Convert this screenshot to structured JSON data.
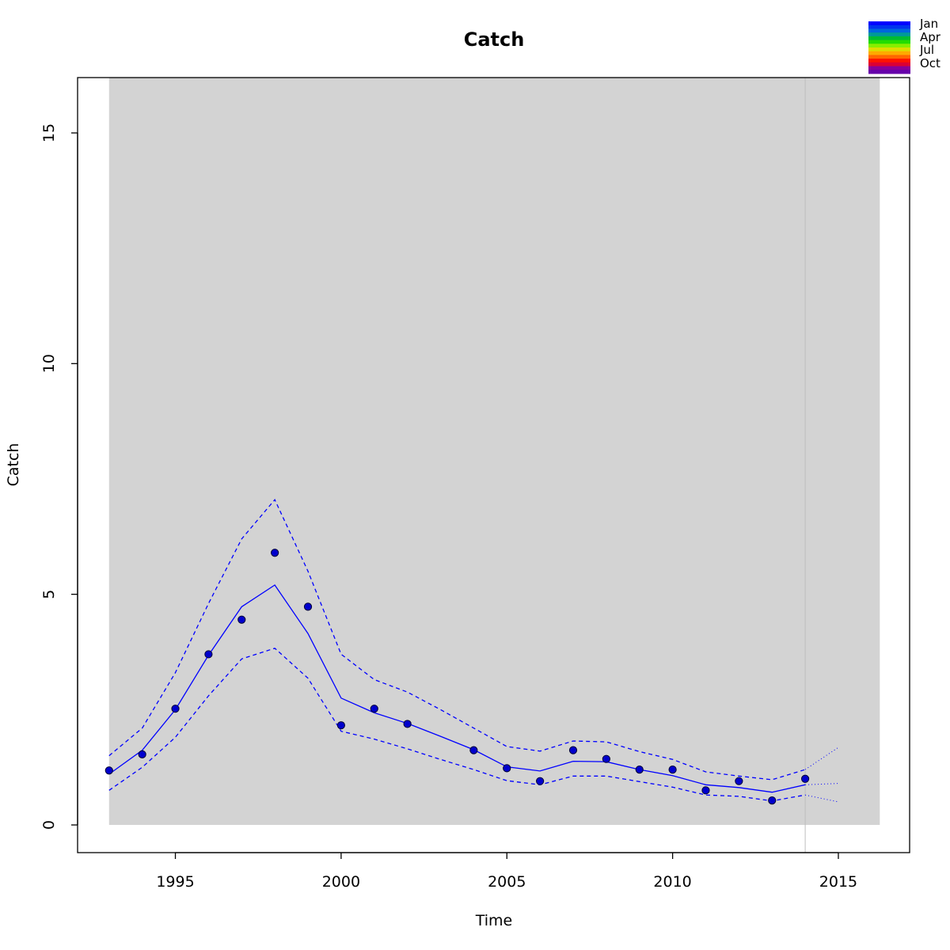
{
  "chart_data": {
    "type": "line",
    "title": "Catch",
    "xlabel": "Time",
    "ylabel": "Catch",
    "xlim": [
      1992.05,
      2017.15
    ],
    "ylim": [
      -0.6,
      16.2
    ],
    "xticks": [
      1995,
      2000,
      2005,
      2010,
      2015
    ],
    "yticks": [
      0,
      5,
      10,
      15
    ],
    "grid": false,
    "shaded_region": {
      "x_range": [
        1993,
        2016.25
      ],
      "y_range": [
        0,
        16.2
      ],
      "color": "#d3d3d3"
    },
    "vertical_line": {
      "x": 2014,
      "color": "#bebebe"
    },
    "line_color": "#0000ff",
    "point_color": "#0000cd",
    "observed": {
      "x": [
        1993,
        1994,
        1995,
        1996,
        1997,
        1998,
        1999,
        2000,
        2001,
        2002,
        2004,
        2005,
        2006,
        2007,
        2008,
        2009,
        2010,
        2011,
        2012,
        2013,
        2014
      ],
      "y": [
        1.18,
        1.53,
        2.52,
        3.7,
        4.45,
        5.9,
        4.73,
        2.16,
        2.52,
        2.19,
        1.62,
        1.23,
        0.95,
        1.62,
        1.43,
        1.2,
        1.2,
        0.75,
        0.95,
        0.53,
        1.0
      ]
    },
    "fitted": {
      "x": [
        1993,
        1994,
        1995,
        1996,
        1997,
        1998,
        1999,
        2000,
        2001,
        2002,
        2003,
        2004,
        2005,
        2006,
        2007,
        2008,
        2009,
        2010,
        2011,
        2012,
        2013,
        2014
      ],
      "y": [
        1.1,
        1.62,
        2.5,
        3.68,
        4.73,
        5.2,
        4.15,
        2.75,
        2.43,
        2.2,
        1.92,
        1.63,
        1.26,
        1.17,
        1.38,
        1.37,
        1.2,
        1.07,
        0.87,
        0.81,
        0.71,
        0.87
      ]
    },
    "upper": {
      "x": [
        1993,
        1994,
        1995,
        1996,
        1997,
        1998,
        1999,
        2000,
        2001,
        2002,
        2003,
        2004,
        2005,
        2006,
        2007,
        2008,
        2009,
        2010,
        2011,
        2012,
        2013,
        2014
      ],
      "y": [
        1.5,
        2.1,
        3.3,
        4.8,
        6.2,
        7.05,
        5.5,
        3.7,
        3.15,
        2.88,
        2.5,
        2.1,
        1.7,
        1.6,
        1.82,
        1.8,
        1.59,
        1.42,
        1.15,
        1.06,
        0.98,
        1.2
      ]
    },
    "lower": {
      "x": [
        1993,
        1994,
        1995,
        1996,
        1997,
        1998,
        1999,
        2000,
        2001,
        2002,
        2003,
        2004,
        2005,
        2006,
        2007,
        2008,
        2009,
        2010,
        2011,
        2012,
        2013,
        2014
      ],
      "y": [
        0.75,
        1.25,
        1.9,
        2.8,
        3.6,
        3.83,
        3.18,
        2.03,
        1.86,
        1.65,
        1.42,
        1.2,
        0.96,
        0.87,
        1.06,
        1.06,
        0.94,
        0.82,
        0.65,
        0.62,
        0.52,
        0.65
      ]
    },
    "forecast": {
      "x": [
        2014,
        2015
      ],
      "mean": [
        0.87,
        0.9
      ],
      "upper": [
        1.2,
        1.68
      ],
      "lower": [
        0.65,
        0.5
      ]
    }
  },
  "legend": {
    "labels": [
      "Jan",
      "Apr",
      "Jul",
      "Oct"
    ],
    "colors": [
      "#0000ff",
      "#0033ee",
      "#0066dd",
      "#009999",
      "#00bb33",
      "#22dd00",
      "#88ee00",
      "#dddd00",
      "#ffaa00",
      "#ff6600",
      "#ff1100",
      "#dd0033",
      "#880099",
      "#6600aa"
    ]
  }
}
